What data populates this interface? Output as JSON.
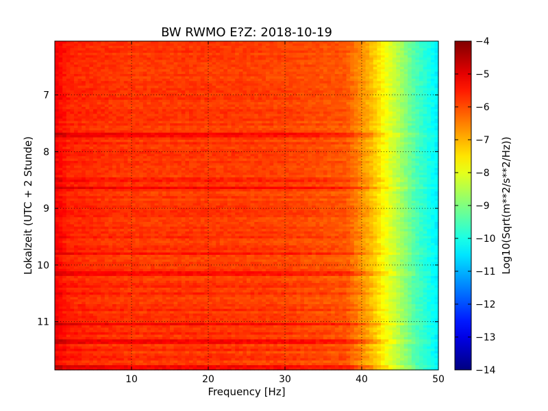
{
  "chart_data": {
    "type": "heatmap",
    "title": "BW RWMO E?Z: 2018-10-19",
    "xlabel": "Frequency [Hz]",
    "ylabel": "Lokalzeit (UTC + 2 Stunde)",
    "xlim": [
      0,
      50
    ],
    "ylim": [
      11.85,
      6.05
    ],
    "x_ticks": [
      10,
      20,
      30,
      40,
      50
    ],
    "y_ticks": [
      7,
      8,
      9,
      10,
      11
    ],
    "grid": true,
    "colormap": "jet",
    "colorbar": {
      "label": "Log10(Sqrt(m**2/s**2/Hz))",
      "range": [
        -14,
        -4
      ],
      "ticks": [
        -4,
        -5,
        -6,
        -7,
        -8,
        -9,
        -10,
        -11,
        -12,
        -13,
        -14
      ]
    },
    "profile": {
      "freq_hz": [
        0,
        2,
        10,
        20,
        30,
        38,
        41,
        43,
        45,
        47,
        49,
        50
      ],
      "log_psd": [
        -5.2,
        -5.6,
        -5.8,
        -5.8,
        -5.9,
        -6.1,
        -7.0,
        -7.8,
        -8.6,
        -9.5,
        -10.1,
        -10.4
      ]
    },
    "strong_bands_hour": [
      7.7,
      8.65,
      9.8,
      10.15,
      11.05,
      11.35,
      11.8
    ],
    "weak_bands_hour": [
      7.85,
      8.5,
      9.5,
      10.35,
      10.5,
      10.8,
      11.2,
      11.5,
      11.65
    ]
  }
}
